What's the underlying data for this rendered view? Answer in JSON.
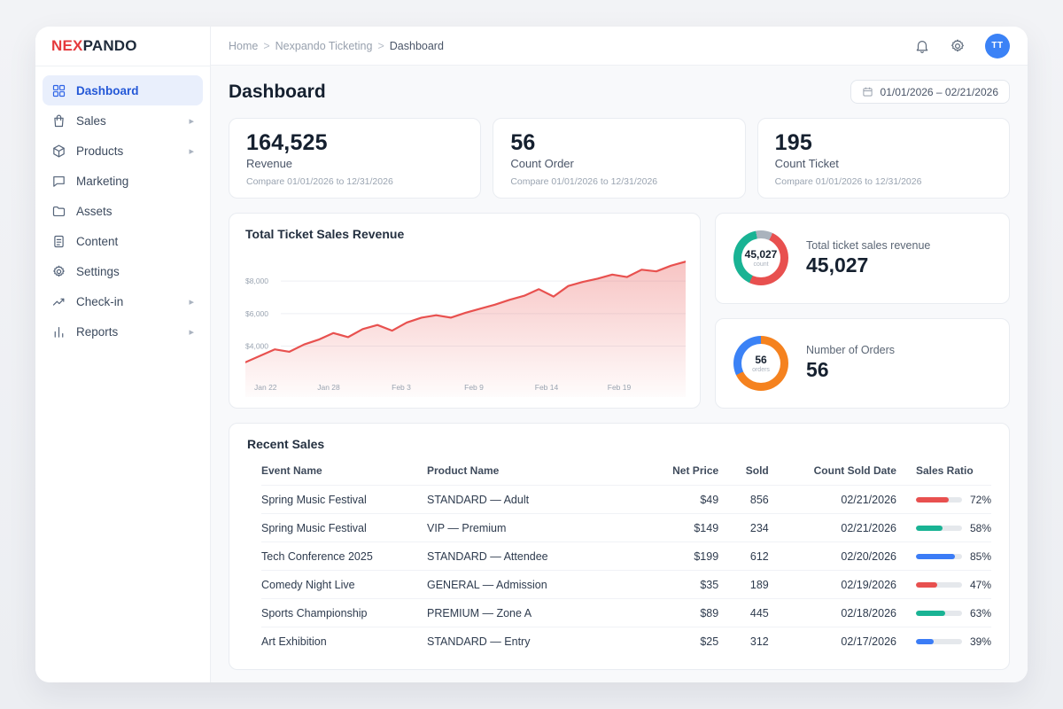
{
  "app": {
    "logo_primary": "NEX",
    "logo_secondary": "PANDO"
  },
  "colors": {
    "accent_red": "#e8504f",
    "teal": "#19b394",
    "blue": "#3b7cf6",
    "orange": "#f5821f",
    "gray_segment": "#aab3bd",
    "logo_red": "#e53a3d",
    "avatar_blue": "#3b82f6"
  },
  "sidebar": {
    "items": [
      {
        "label": "Dashboard",
        "icon": "grid-icon",
        "active": true,
        "has_submenu": false
      },
      {
        "label": "Sales",
        "icon": "bag-icon",
        "active": false,
        "has_submenu": true
      },
      {
        "label": "Products",
        "icon": "box-icon",
        "active": false,
        "has_submenu": true
      },
      {
        "label": "Marketing",
        "icon": "chat-icon",
        "active": false,
        "has_submenu": false
      },
      {
        "label": "Assets",
        "icon": "folder-icon",
        "active": false,
        "has_submenu": false
      },
      {
        "label": "Content",
        "icon": "document-icon",
        "active": false,
        "has_submenu": false
      },
      {
        "label": "Settings",
        "icon": "gear-icon",
        "active": false,
        "has_submenu": false
      },
      {
        "label": "Check-in",
        "icon": "trend-icon",
        "active": false,
        "has_submenu": true
      },
      {
        "label": "Reports",
        "icon": "bar-chart-icon",
        "active": false,
        "has_submenu": true
      }
    ]
  },
  "header": {
    "breadcrumb": [
      "Home",
      "Nexpando Ticketing",
      "Dashboard"
    ],
    "avatar_initials": "TT"
  },
  "page": {
    "title": "Dashboard",
    "date_range": "01/01/2026 – 02/21/2026"
  },
  "stats": [
    {
      "value": "164,525",
      "label": "Revenue",
      "compare": "Compare 01/01/2026 to 12/31/2026"
    },
    {
      "value": "56",
      "label": "Count Order",
      "compare": "Compare 01/01/2026 to 12/31/2026"
    },
    {
      "value": "195",
      "label": "Count Ticket",
      "compare": "Compare 01/01/2026 to 12/31/2026"
    }
  ],
  "chart_data": {
    "type": "area",
    "title": "Total Ticket Sales Revenue",
    "x_tick_labels": [
      "Jan 22",
      "Jan 28",
      "Feb 3",
      "Feb 9",
      "Feb 14",
      "Feb 19"
    ],
    "y_ticks": [
      {
        "label": "$4,000",
        "value": 4000
      },
      {
        "label": "$6,000",
        "value": 6000
      },
      {
        "label": "$8,000",
        "value": 8000
      }
    ],
    "ylim": [
      2500,
      9700
    ],
    "values": [
      3000,
      3400,
      3800,
      3650,
      4100,
      4400,
      4800,
      4550,
      5050,
      5300,
      4950,
      5450,
      5750,
      5900,
      5750,
      6050,
      6300,
      6550,
      6850,
      7100,
      7500,
      7050,
      7700,
      7950,
      8150,
      8400,
      8250,
      8700,
      8600,
      8950,
      9200
    ],
    "line_color": "#e8514f",
    "grid": true,
    "legend": false
  },
  "donuts": [
    {
      "label": "Total ticket sales revenue",
      "value": "45,027",
      "center_value": "45,027",
      "center_unit": "count",
      "rotation": 25,
      "segments": [
        {
          "color": "#e8504f",
          "pct": 50
        },
        {
          "color": "#19b394",
          "pct": 40
        },
        {
          "color": "#aab3bd",
          "pct": 10
        }
      ]
    },
    {
      "label": "Number of Orders",
      "value": "56",
      "center_value": "56",
      "center_unit": "orders",
      "rotation": 0,
      "segments": [
        {
          "color": "#f5821f",
          "pct": 68
        },
        {
          "color": "#3b82f6",
          "pct": 32
        }
      ]
    }
  ],
  "recent_sales": {
    "title": "Recent Sales",
    "columns": [
      "Event Name",
      "Product Name",
      "Net Price",
      "Sold",
      "Count Sold Date",
      "Sales Ratio"
    ],
    "rows": [
      {
        "event": "Spring Music Festival",
        "product": "STANDARD — Adult",
        "price": "$49",
        "sold": "856",
        "date": "02/21/2026",
        "ratio": 72,
        "color": "#e8504f"
      },
      {
        "event": "Spring Music Festival",
        "product": "VIP — Premium",
        "price": "$149",
        "sold": "234",
        "date": "02/21/2026",
        "ratio": 58,
        "color": "#19b394"
      },
      {
        "event": "Tech Conference 2025",
        "product": "STANDARD — Attendee",
        "price": "$199",
        "sold": "612",
        "date": "02/20/2026",
        "ratio": 85,
        "color": "#3b7cf6"
      },
      {
        "event": "Comedy Night Live",
        "product": "GENERAL — Admission",
        "price": "$35",
        "sold": "189",
        "date": "02/19/2026",
        "ratio": 47,
        "color": "#e8504f"
      },
      {
        "event": "Sports Championship",
        "product": "PREMIUM — Zone A",
        "price": "$89",
        "sold": "445",
        "date": "02/18/2026",
        "ratio": 63,
        "color": "#19b394"
      },
      {
        "event": "Art Exhibition",
        "product": "STANDARD — Entry",
        "price": "$25",
        "sold": "312",
        "date": "02/17/2026",
        "ratio": 39,
        "color": "#3b7cf6"
      }
    ]
  }
}
